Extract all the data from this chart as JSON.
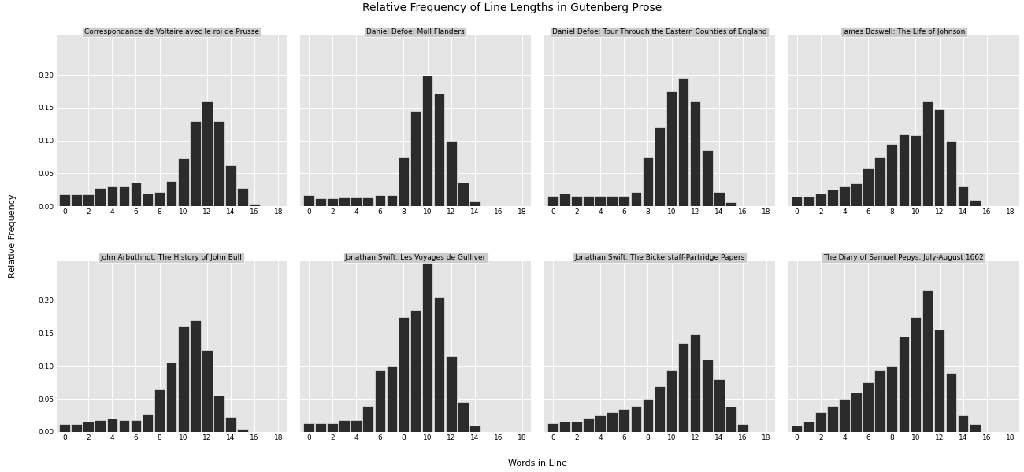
{
  "title": "Relative Frequency of Line Lengths in Gutenberg Prose",
  "xlabel": "Words in Line",
  "ylabel": "Relative Frequency",
  "bar_color": "#2b2b2b",
  "panel_background": "#e5e5e5",
  "grid_color": "#ffffff",
  "strip_color": "#cccccc",
  "x_bins": [
    0,
    1,
    2,
    3,
    4,
    5,
    6,
    7,
    8,
    9,
    10,
    11,
    12,
    13,
    14,
    15,
    16,
    17,
    18
  ],
  "subplots": [
    {
      "title": "Correspondance de Voltaire avec le roi de Prusse",
      "values": [
        0.018,
        0.018,
        0.018,
        0.028,
        0.03,
        0.03,
        0.036,
        0.02,
        0.022,
        0.038,
        0.073,
        0.13,
        0.16,
        0.13,
        0.063,
        0.028,
        0.004,
        0.0,
        0.0
      ]
    },
    {
      "title": "Daniel Defoe: Moll Flanders",
      "values": [
        0.017,
        0.012,
        0.012,
        0.013,
        0.013,
        0.013,
        0.017,
        0.017,
        0.074,
        0.145,
        0.199,
        0.172,
        0.1,
        0.036,
        0.008,
        0.0,
        0.0,
        0.0,
        0.0
      ]
    },
    {
      "title": "Daniel Defoe: Tour Through the Eastern Counties of England",
      "values": [
        0.016,
        0.02,
        0.016,
        0.016,
        0.016,
        0.016,
        0.016,
        0.022,
        0.075,
        0.12,
        0.175,
        0.195,
        0.16,
        0.085,
        0.022,
        0.006,
        0.0,
        0.0,
        0.0
      ]
    },
    {
      "title": "James Boswell: The Life of Johnson",
      "values": [
        0.015,
        0.015,
        0.02,
        0.025,
        0.03,
        0.035,
        0.058,
        0.075,
        0.095,
        0.11,
        0.108,
        0.16,
        0.148,
        0.1,
        0.03,
        0.01,
        0.0,
        0.0,
        0.0
      ]
    },
    {
      "title": "John Arbuthnot: The History of John Bull",
      "values": [
        0.012,
        0.012,
        0.015,
        0.018,
        0.02,
        0.018,
        0.018,
        0.028,
        0.065,
        0.105,
        0.16,
        0.17,
        0.125,
        0.055,
        0.023,
        0.005,
        0.0,
        0.0,
        0.0
      ]
    },
    {
      "title": "Jonathan Swift: Les Voyages de Gulliver",
      "values": [
        0.013,
        0.013,
        0.013,
        0.018,
        0.018,
        0.04,
        0.095,
        0.1,
        0.175,
        0.185,
        0.26,
        0.205,
        0.115,
        0.045,
        0.01,
        0.0,
        0.0,
        0.0,
        0.0
      ]
    },
    {
      "title": "Jonathan Swift: The Bickerstaff-Partridge Papers",
      "values": [
        0.013,
        0.015,
        0.015,
        0.022,
        0.025,
        0.03,
        0.035,
        0.04,
        0.05,
        0.07,
        0.095,
        0.135,
        0.148,
        0.11,
        0.08,
        0.038,
        0.012,
        0.0,
        0.0
      ]
    },
    {
      "title": "The Diary of Samuel Pepys, July-August 1662",
      "values": [
        0.01,
        0.015,
        0.03,
        0.04,
        0.05,
        0.06,
        0.075,
        0.095,
        0.1,
        0.145,
        0.175,
        0.215,
        0.155,
        0.09,
        0.025,
        0.012,
        0.0,
        0.0,
        0.0
      ]
    }
  ]
}
